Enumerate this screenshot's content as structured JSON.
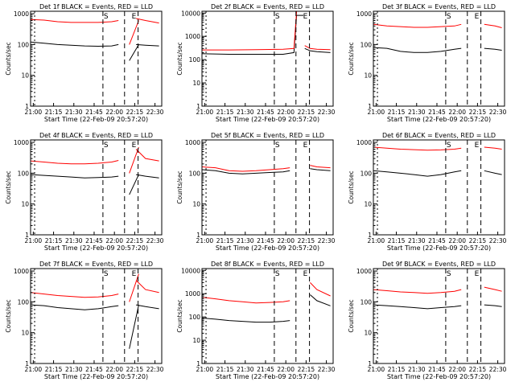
{
  "figure": {
    "xlabel": "Start Time (22-Feb-09 20:57:20)",
    "ylabel": "Counts/sec",
    "legend_text": "BLACK = Events, RED = LLD",
    "xtick_labels": [
      "21:00",
      "21:15",
      "21:30",
      "21:45",
      "22:00",
      "22:15",
      "22:30"
    ],
    "ytick_labels": [
      "1",
      "10",
      "100",
      "1000",
      "10000"
    ],
    "marker_S": "S",
    "marker_E": "E",
    "colors": {
      "events": "#000000",
      "lld": "#ff0000",
      "axes": "#000000",
      "background": "#ffffff"
    }
  },
  "chart_data": [
    {
      "type": "line",
      "title": "Det 1f  BLACK = Events, RED = LLD",
      "detector": "Det 1f",
      "ylog": true,
      "ylim": [
        1,
        1200
      ],
      "xlim_minutes": [
        0,
        97
      ],
      "series": [
        {
          "name": "Events",
          "color": "#000000",
          "segments": [
            {
              "x": [
                0,
                10,
                20,
                30,
                40,
                50,
                60,
                65
              ],
              "y": [
                120,
                110,
                100,
                95,
                90,
                88,
                90,
                100
              ]
            },
            {
              "x": [
                73,
                80
              ],
              "y": [
                30,
                100
              ]
            },
            {
              "x": [
                78,
                85,
                95
              ],
              "y": [
                100,
                95,
                90
              ]
            }
          ]
        },
        {
          "name": "LLD",
          "color": "#ff0000",
          "segments": [
            {
              "x": [
                0,
                10,
                20,
                30,
                40,
                50,
                60,
                65
              ],
              "y": [
                650,
                620,
                550,
                520,
                520,
                520,
                550,
                600
              ]
            },
            {
              "x": [
                73,
                80
              ],
              "y": [
                100,
                600
              ]
            },
            {
              "x": [
                78,
                85,
                95
              ],
              "y": [
                700,
                600,
                500
              ]
            }
          ]
        }
      ]
    },
    {
      "type": "line",
      "title": "Det 2f  BLACK = Events, RED = LLD",
      "detector": "Det 2f",
      "ylog": true,
      "ylim": [
        1,
        12000
      ],
      "xlim_minutes": [
        0,
        97
      ],
      "series": [
        {
          "name": "Events",
          "color": "#000000",
          "segments": [
            {
              "x": [
                0,
                20,
                40,
                60,
                68,
                70,
                75
              ],
              "y": [
                180,
                170,
                170,
                170,
                200,
                8000,
                8000
              ]
            },
            {
              "x": [
                76,
                80,
                85,
                95
              ],
              "y": [
                300,
                240,
                220,
                200
              ]
            }
          ]
        },
        {
          "name": "LLD",
          "color": "#ff0000",
          "segments": [
            {
              "x": [
                0,
                20,
                40,
                60,
                68,
                70,
                75
              ],
              "y": [
                260,
                260,
                270,
                280,
                300,
                12000,
                12000
              ]
            },
            {
              "x": [
                76,
                80,
                85,
                95
              ],
              "y": [
                400,
                300,
                280,
                270
              ]
            }
          ]
        }
      ]
    },
    {
      "type": "line",
      "title": "Det 3f  BLACK = Events, RED = LLD",
      "detector": "Det 3f",
      "ylog": true,
      "ylim": [
        1,
        1200
      ],
      "xlim_minutes": [
        0,
        97
      ],
      "series": [
        {
          "name": "Events",
          "color": "#000000",
          "segments": [
            {
              "x": [
                0,
                10,
                20,
                30,
                40,
                50,
                60,
                65
              ],
              "y": [
                80,
                75,
                60,
                55,
                55,
                60,
                70,
                75
              ]
            },
            {
              "x": [
                82,
                90,
                95
              ],
              "y": [
                75,
                70,
                65
              ]
            }
          ]
        },
        {
          "name": "LLD",
          "color": "#ff0000",
          "segments": [
            {
              "x": [
                0,
                10,
                20,
                30,
                40,
                50,
                60,
                65
              ],
              "y": [
                450,
                400,
                380,
                360,
                360,
                380,
                400,
                450
              ]
            },
            {
              "x": [
                82,
                90,
                95
              ],
              "y": [
                450,
                400,
                350
              ]
            }
          ]
        }
      ]
    },
    {
      "type": "line",
      "title": "Det 4f  BLACK = Events, RED = LLD",
      "detector": "Det 4f",
      "ylog": true,
      "ylim": [
        1,
        1200
      ],
      "xlim_minutes": [
        0,
        97
      ],
      "series": [
        {
          "name": "Events",
          "color": "#000000",
          "segments": [
            {
              "x": [
                0,
                10,
                20,
                30,
                40,
                50,
                60,
                65
              ],
              "y": [
                90,
                85,
                80,
                75,
                70,
                72,
                75,
                80
              ]
            },
            {
              "x": [
                73,
                80
              ],
              "y": [
                20,
                90
              ]
            },
            {
              "x": [
                78,
                85,
                95
              ],
              "y": [
                90,
                80,
                70
              ]
            }
          ]
        },
        {
          "name": "LLD",
          "color": "#ff0000",
          "segments": [
            {
              "x": [
                0,
                10,
                20,
                30,
                40,
                50,
                60,
                65
              ],
              "y": [
                250,
                230,
                210,
                200,
                200,
                210,
                230,
                260
              ]
            },
            {
              "x": [
                73,
                80
              ],
              "y": [
                100,
                700
              ]
            },
            {
              "x": [
                78,
                85,
                95
              ],
              "y": [
                600,
                300,
                250
              ]
            }
          ]
        }
      ]
    },
    {
      "type": "line",
      "title": "Det 5f  BLACK = Events, RED = LLD",
      "detector": "Det 5f",
      "ylog": true,
      "ylim": [
        1,
        1200
      ],
      "xlim_minutes": [
        0,
        97
      ],
      "series": [
        {
          "name": "Events",
          "color": "#000000",
          "segments": [
            {
              "x": [
                0,
                10,
                20,
                30,
                40,
                50,
                60,
                65
              ],
              "y": [
                130,
                120,
                100,
                95,
                100,
                105,
                110,
                120
              ]
            },
            {
              "x": [
                80,
                85,
                95
              ],
              "y": [
                140,
                130,
                120
              ]
            }
          ]
        },
        {
          "name": "LLD",
          "color": "#ff0000",
          "segments": [
            {
              "x": [
                0,
                10,
                20,
                30,
                40,
                50,
                60,
                65
              ],
              "y": [
                160,
                150,
                120,
                115,
                120,
                130,
                140,
                150
              ]
            },
            {
              "x": [
                80,
                85,
                95
              ],
              "y": [
                180,
                160,
                150
              ]
            }
          ]
        }
      ]
    },
    {
      "type": "line",
      "title": "Det 6f  BLACK = Events, RED = LLD",
      "detector": "Det 6f",
      "ylog": true,
      "ylim": [
        1,
        1200
      ],
      "xlim_minutes": [
        0,
        97
      ],
      "series": [
        {
          "name": "Events",
          "color": "#000000",
          "segments": [
            {
              "x": [
                0,
                10,
                20,
                30,
                40,
                50,
                60,
                65
              ],
              "y": [
                120,
                110,
                100,
                90,
                80,
                90,
                110,
                120
              ]
            },
            {
              "x": [
                82,
                90,
                95
              ],
              "y": [
                120,
                100,
                90
              ]
            }
          ]
        },
        {
          "name": "LLD",
          "color": "#ff0000",
          "segments": [
            {
              "x": [
                0,
                10,
                20,
                30,
                40,
                50,
                60,
                65
              ],
              "y": [
                700,
                650,
                600,
                580,
                560,
                570,
                600,
                650
              ]
            },
            {
              "x": [
                82,
                90,
                95
              ],
              "y": [
                700,
                650,
                600
              ]
            }
          ]
        }
      ]
    },
    {
      "type": "line",
      "title": "Det 7f  BLACK = Events, RED = LLD",
      "detector": "Det 7f",
      "ylog": true,
      "ylim": [
        1,
        1200
      ],
      "xlim_minutes": [
        0,
        97
      ],
      "series": [
        {
          "name": "Events",
          "color": "#000000",
          "segments": [
            {
              "x": [
                0,
                10,
                20,
                30,
                40,
                50,
                60,
                65
              ],
              "y": [
                80,
                75,
                65,
                60,
                55,
                60,
                70,
                75
              ]
            },
            {
              "x": [
                73,
                80
              ],
              "y": [
                3,
                80
              ]
            },
            {
              "x": [
                78,
                85,
                95
              ],
              "y": [
                80,
                70,
                60
              ]
            }
          ]
        },
        {
          "name": "LLD",
          "color": "#ff0000",
          "segments": [
            {
              "x": [
                0,
                10,
                20,
                30,
                40,
                50,
                60,
                65
              ],
              "y": [
                200,
                180,
                160,
                150,
                140,
                145,
                160,
                180
              ]
            },
            {
              "x": [
                73,
                80
              ],
              "y": [
                100,
                800
              ]
            },
            {
              "x": [
                78,
                85,
                95
              ],
              "y": [
                500,
                250,
                200
              ]
            }
          ]
        }
      ]
    },
    {
      "type": "line",
      "title": "Det 8f  BLACK = Events, RED = LLD",
      "detector": "Det 8f",
      "ylog": true,
      "ylim": [
        1,
        12000
      ],
      "xlim_minutes": [
        0,
        97
      ],
      "series": [
        {
          "name": "Events",
          "color": "#000000",
          "segments": [
            {
              "x": [
                0,
                10,
                20,
                30,
                40,
                50,
                60,
                65
              ],
              "y": [
                90,
                80,
                70,
                65,
                60,
                60,
                65,
                70
              ]
            },
            {
              "x": [
                80,
                85,
                95
              ],
              "y": [
                900,
                500,
                300
              ]
            }
          ]
        },
        {
          "name": "LLD",
          "color": "#ff0000",
          "segments": [
            {
              "x": [
                0,
                10,
                20,
                30,
                40,
                50,
                60,
                65
              ],
              "y": [
                700,
                600,
                500,
                450,
                400,
                420,
                450,
                500
              ]
            },
            {
              "x": [
                80,
                85,
                95
              ],
              "y": [
                3000,
                1500,
                800
              ]
            }
          ]
        }
      ]
    },
    {
      "type": "line",
      "title": "Det 9f  BLACK = Events, RED = LLD",
      "detector": "Det 9f",
      "ylog": true,
      "ylim": [
        1,
        1200
      ],
      "xlim_minutes": [
        0,
        97
      ],
      "series": [
        {
          "name": "Events",
          "color": "#000000",
          "segments": [
            {
              "x": [
                0,
                10,
                20,
                30,
                40,
                50,
                60,
                65
              ],
              "y": [
                80,
                75,
                70,
                65,
                60,
                65,
                70,
                75
              ]
            },
            {
              "x": [
                82,
                90,
                95
              ],
              "y": [
                80,
                75,
                70
              ]
            }
          ]
        },
        {
          "name": "LLD",
          "color": "#ff0000",
          "segments": [
            {
              "x": [
                0,
                10,
                20,
                30,
                40,
                50,
                60,
                65
              ],
              "y": [
                250,
                230,
                210,
                200,
                190,
                200,
                220,
                250
              ]
            },
            {
              "x": [
                82,
                90,
                95
              ],
              "y": [
                300,
                250,
                220
              ]
            }
          ]
        }
      ]
    }
  ]
}
